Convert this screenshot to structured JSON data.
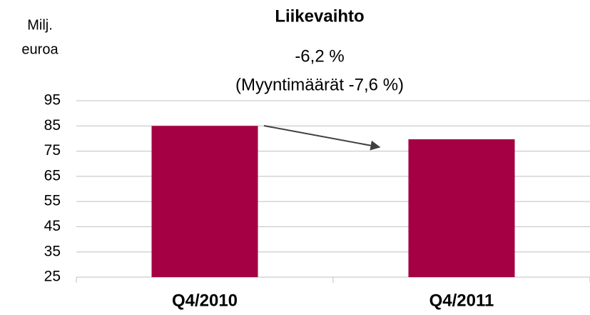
{
  "chart_data": {
    "type": "bar",
    "title": "Liikevaihto",
    "y_label": [
      "Milj.",
      "euroa"
    ],
    "annotations": [
      "-6,2 %",
      "(Myyntimäärät -7,6 %)"
    ],
    "categories": [
      "Q4/2010",
      "Q4/2011"
    ],
    "values": [
      85,
      79.7
    ],
    "color": "#a50044",
    "ylim": [
      25,
      95
    ],
    "yticks": [
      25,
      35,
      45,
      55,
      65,
      75,
      85,
      95
    ],
    "grid": true
  }
}
